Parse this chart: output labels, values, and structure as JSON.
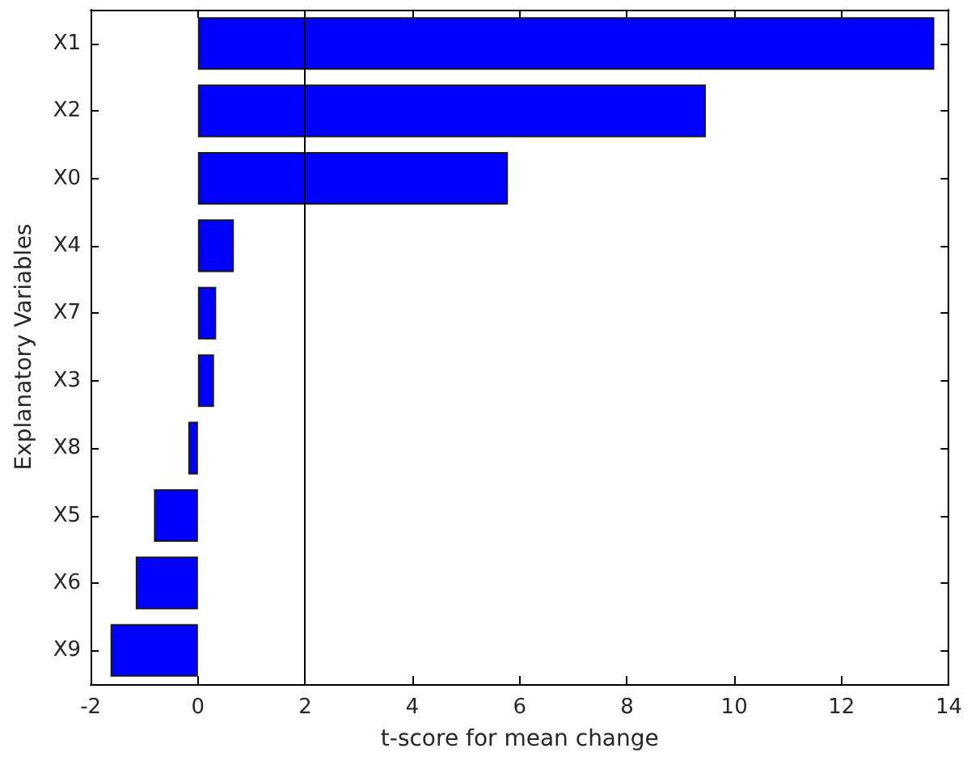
{
  "chart_data": {
    "type": "bar",
    "orientation": "horizontal",
    "xlabel": "t-score for mean change",
    "ylabel": "Explanatory Variables",
    "categories": [
      "X1",
      "X2",
      "X0",
      "X4",
      "X7",
      "X3",
      "X8",
      "X5",
      "X6",
      "X9"
    ],
    "values": [
      13.73,
      9.47,
      5.78,
      0.67,
      0.34,
      0.3,
      -0.18,
      -0.82,
      -1.16,
      -1.63
    ],
    "color": "#0000ff",
    "xlim": [
      -2,
      14
    ],
    "xticks": [
      -2,
      0,
      2,
      4,
      6,
      8,
      10,
      12,
      14
    ],
    "ref_lines": [
      {
        "axis": "x",
        "value": 2,
        "color": "#000000"
      }
    ]
  }
}
